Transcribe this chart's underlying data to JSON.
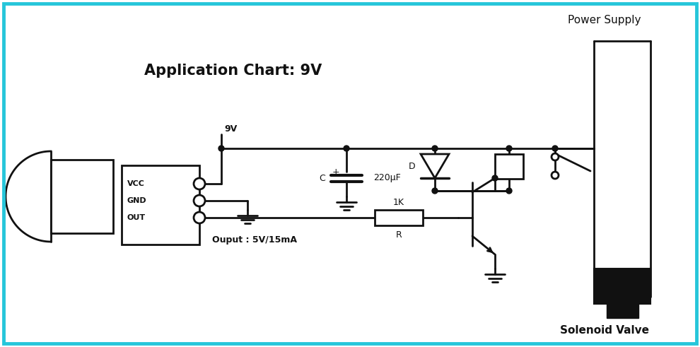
{
  "bg_color": "#ffffff",
  "border_color": "#26c6da",
  "line_color": "#111111",
  "text_color": "#111111",
  "title": "Application Chart: 9V",
  "label_power_supply": "Power Supply",
  "label_solenoid": "Solenoid Valve",
  "label_9v": "9V",
  "label_vcc": "VCC",
  "label_gnd": "GND",
  "label_out": "OUT",
  "label_output": "Ouput : 5V/15mA",
  "label_C": "C",
  "label_cap_val": "220μF",
  "label_D": "D",
  "label_1K": "1K",
  "label_R": "R",
  "lw": 2.0
}
